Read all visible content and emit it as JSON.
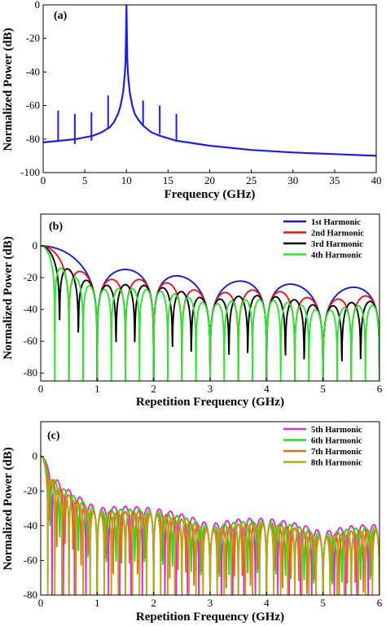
{
  "chart_data": [
    {
      "type": "line",
      "panel_label": "(a)",
      "xlabel": "Frequency (GHz)",
      "ylabel": "Normalized Power (dB)",
      "xlim": [
        0,
        40
      ],
      "ylim": [
        -100,
        0
      ],
      "xticks": [
        "0",
        "5",
        "10",
        "15",
        "20",
        "25",
        "30",
        "35",
        "40"
      ],
      "yticks": [
        "0",
        "-20",
        "-40",
        "-60",
        "-80",
        "-100"
      ],
      "grid": false,
      "legend": "none",
      "series": [
        {
          "color": "#1f1fd6",
          "x": [
            0,
            2,
            4,
            6,
            7,
            8,
            8.5,
            9,
            9.3,
            9.6,
            9.8,
            9.9,
            10,
            10.1,
            10.2,
            10.4,
            10.7,
            11,
            11.5,
            12,
            13,
            14,
            16,
            18,
            20,
            25,
            30,
            35,
            40
          ],
          "y": [
            -82,
            -81,
            -80,
            -78,
            -76,
            -73,
            -70,
            -65,
            -60,
            -52,
            -42,
            -33,
            0,
            -33,
            -42,
            -52,
            -60,
            -65,
            -69,
            -72,
            -76,
            -78,
            -81,
            -82.5,
            -84,
            -86.5,
            -88,
            -89,
            -90
          ],
          "peaks": [
            {
              "x": 1.8,
              "top": -63,
              "bottom": -81
            },
            {
              "x": 3.8,
              "top": -65,
              "bottom": -83
            },
            {
              "x": 5.8,
              "top": -64,
              "bottom": -81
            },
            {
              "x": 7.8,
              "top": -54,
              "bottom": -74
            },
            {
              "x": 12,
              "top": -57,
              "bottom": -72
            },
            {
              "x": 14,
              "top": -60,
              "bottom": -77
            },
            {
              "x": 16,
              "top": -65,
              "bottom": -81
            }
          ]
        }
      ]
    },
    {
      "type": "line",
      "panel_label": "(b)",
      "xlabel": "Repetition Frequency (GHz)",
      "ylabel": "Normalized Power (dB)",
      "xlim": [
        0,
        6
      ],
      "ylim": [
        -85,
        20
      ],
      "xticks": [
        "0",
        "1",
        "2",
        "3",
        "4",
        "5",
        "6"
      ],
      "yticks": [
        "0",
        "-20",
        "-40",
        "-60",
        "-80"
      ],
      "grid": false,
      "legend": "top-right",
      "series": [
        {
          "name": "1st Harmonic",
          "harmonic": 1,
          "color": "#1a1acc"
        },
        {
          "name": "2nd Harmonic",
          "harmonic": 2,
          "color": "#e01818"
        },
        {
          "name": "3rd Harmonic",
          "harmonic": 3,
          "color": "#000000"
        },
        {
          "name": "4th Harmonic",
          "harmonic": 4,
          "color": "#33e033"
        }
      ]
    },
    {
      "type": "line",
      "panel_label": "(c)",
      "xlabel": "Repetition Frequency (GHz)",
      "ylabel": "Normalized Power (dB)",
      "xlim": [
        0,
        6
      ],
      "ylim": [
        -80,
        20
      ],
      "xticks": [
        "0",
        "1",
        "2",
        "3",
        "4",
        "5",
        "6"
      ],
      "yticks": [
        "0",
        "-20",
        "-40",
        "-60",
        "-80"
      ],
      "grid": false,
      "legend": "top-right",
      "series": [
        {
          "name": "5th Harmonic",
          "harmonic": 5,
          "color": "#ee22d8"
        },
        {
          "name": "6th Harmonic",
          "harmonic": 6,
          "color": "#22dd22"
        },
        {
          "name": "7th Harmonic",
          "harmonic": 7,
          "color": "#e0701c"
        },
        {
          "name": "8th Harmonic",
          "harmonic": 8,
          "color": "#b0a820"
        }
      ]
    }
  ]
}
